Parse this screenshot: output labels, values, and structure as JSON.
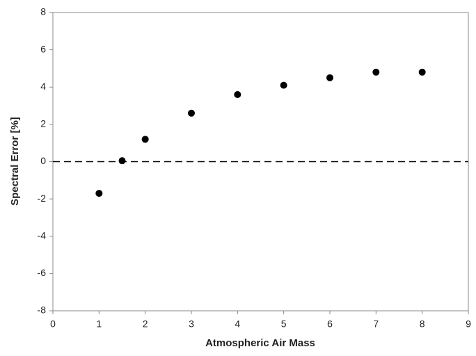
{
  "chart_data": {
    "type": "scatter",
    "xlabel": "Atmospheric Air Mass",
    "ylabel": "Spectral Error [%]",
    "series": [
      {
        "color": "#000000",
        "x": [
          1,
          1.5,
          2,
          3,
          4,
          5,
          6,
          7,
          8
        ],
        "values": [
          -1.7,
          0.05,
          1.2,
          2.6,
          3.6,
          4.1,
          4.5,
          4.8,
          4.8
        ]
      }
    ],
    "xlim": [
      0,
      9
    ],
    "xticks": [
      0,
      1,
      2,
      3,
      4,
      5,
      6,
      7,
      8,
      9
    ],
    "ylim": [
      -8,
      8
    ],
    "yticks": [
      -8,
      -6,
      -4,
      -2,
      0,
      2,
      4,
      6,
      8
    ],
    "hline": 0,
    "grid": false
  }
}
